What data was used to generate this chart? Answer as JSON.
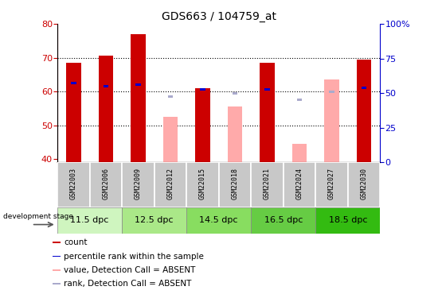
{
  "title": "GDS663 / 104759_at",
  "samples": [
    "GSM22003",
    "GSM22006",
    "GSM22009",
    "GSM22012",
    "GSM22015",
    "GSM22018",
    "GSM22021",
    "GSM22024",
    "GSM22027",
    "GSM22030"
  ],
  "count_values": [
    68.5,
    70.5,
    77.0,
    null,
    61.0,
    null,
    68.5,
    null,
    null,
    69.5
  ],
  "percentile_rank": [
    62.5,
    61.5,
    62.0,
    null,
    60.5,
    null,
    60.5,
    null,
    null,
    61.0
  ],
  "absent_value": [
    null,
    null,
    null,
    52.5,
    null,
    55.5,
    null,
    44.5,
    63.5,
    null
  ],
  "absent_rank": [
    null,
    null,
    null,
    58.5,
    null,
    59.5,
    null,
    57.5,
    60.0,
    null
  ],
  "ylim_left": [
    39,
    80
  ],
  "ylim_right": [
    0,
    100
  ],
  "yticks_left": [
    40,
    50,
    60,
    70,
    80
  ],
  "yticks_right": [
    0,
    25,
    50,
    75,
    100
  ],
  "stage_groups": [
    {
      "label": "11.5 dpc",
      "indices": [
        0,
        1
      ],
      "color": "#cff5bf"
    },
    {
      "label": "12.5 dpc",
      "indices": [
        2,
        3
      ],
      "color": "#aae888"
    },
    {
      "label": "14.5 dpc",
      "indices": [
        4,
        5
      ],
      "color": "#88dd60"
    },
    {
      "label": "16.5 dpc",
      "indices": [
        6,
        7
      ],
      "color": "#66cc44"
    },
    {
      "label": "18.5 dpc",
      "indices": [
        8,
        9
      ],
      "color": "#33bb11"
    }
  ],
  "count_color": "#cc0000",
  "rank_color": "#0000cc",
  "absent_value_color": "#ffaaaa",
  "absent_rank_color": "#aaaacc",
  "tick_label_color_left": "#cc0000",
  "tick_label_color_right": "#0000cc",
  "base_value": 39,
  "bar_width": 0.45
}
